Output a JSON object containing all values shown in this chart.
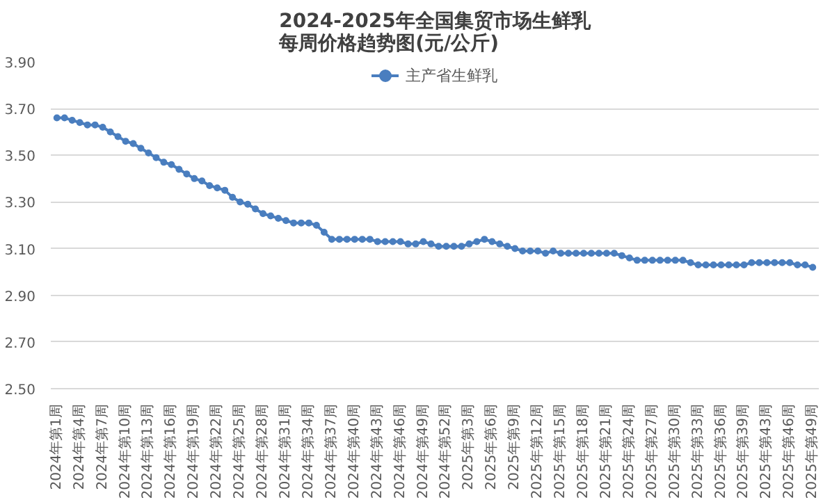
{
  "chart_data": {
    "type": "line",
    "title": "2024-2025年全国集贸市场生鲜乳每周价格趋势图(元/公斤)",
    "categories": [
      "2024年第1周",
      null,
      null,
      "2024年第4周",
      null,
      null,
      "2024年第7周",
      null,
      null,
      "2024年第10周",
      null,
      null,
      "2024年第13周",
      null,
      null,
      "2024年第16周",
      null,
      null,
      "2024年第19周",
      null,
      null,
      "2024年第22周",
      null,
      null,
      "2024年第25周",
      null,
      null,
      "2024年第28周",
      null,
      null,
      "2024年第31周",
      null,
      null,
      "2024年第34周",
      null,
      null,
      "2024年第37周",
      null,
      null,
      "2024年第40周",
      null,
      null,
      "2024年第43周",
      null,
      null,
      "2024年第46周",
      null,
      null,
      "2024年第49周",
      null,
      null,
      "2024年第52周",
      null,
      null,
      "2025年第3周",
      null,
      null,
      "2025年第6周",
      null,
      null,
      "2025年第9周",
      null,
      null,
      "2025年第12周",
      null,
      null,
      "2025年第15周",
      null,
      null,
      "2025年第18周",
      null,
      null,
      "2025年第21周",
      null,
      null,
      "2025年第24周",
      null,
      null,
      "2025年第27周",
      null,
      null,
      "2025年第30周",
      null,
      null,
      "2025年第33周",
      null,
      null,
      "2025年第36周",
      null,
      null,
      "2025年第39周",
      null,
      null,
      "2025年第43周",
      null,
      null,
      "2025年第46周",
      null,
      null,
      "2025年第49周"
    ],
    "series": [
      {
        "name": "主产省生鲜乳",
        "color": "#4a7ebf",
        "values": [
          3.66,
          3.66,
          3.65,
          3.64,
          3.63,
          3.63,
          3.62,
          3.6,
          3.58,
          3.56,
          3.55,
          3.53,
          3.51,
          3.49,
          3.47,
          3.46,
          3.44,
          3.42,
          3.4,
          3.39,
          3.37,
          3.36,
          3.35,
          3.32,
          3.3,
          3.29,
          3.27,
          3.25,
          3.24,
          3.23,
          3.22,
          3.21,
          3.21,
          3.21,
          3.2,
          3.17,
          3.14,
          3.14,
          3.14,
          3.14,
          3.14,
          3.14,
          3.13,
          3.13,
          3.13,
          3.13,
          3.12,
          3.12,
          3.13,
          3.12,
          3.11,
          3.11,
          3.11,
          3.11,
          3.12,
          3.13,
          3.14,
          3.13,
          3.12,
          3.11,
          3.1,
          3.09,
          3.09,
          3.09,
          3.08,
          3.09,
          3.08,
          3.08,
          3.08,
          3.08,
          3.08,
          3.08,
          3.08,
          3.08,
          3.07,
          3.06,
          3.05,
          3.05,
          3.05,
          3.05,
          3.05,
          3.05,
          3.05,
          3.04,
          3.03,
          3.03,
          3.03,
          3.03,
          3.03,
          3.03,
          3.03,
          3.04,
          3.04,
          3.04,
          3.04,
          3.04,
          3.04,
          3.03,
          3.03,
          3.02
        ]
      }
    ],
    "ylim": [
      2.5,
      3.9
    ],
    "yticks": [
      {
        "value": 2.5,
        "label": "2.50"
      },
      {
        "value": 2.7,
        "label": "2.70"
      },
      {
        "value": 2.9,
        "label": "2.90"
      },
      {
        "value": 3.1,
        "label": "3.10"
      },
      {
        "value": 3.3,
        "label": "3.30"
      },
      {
        "value": 3.5,
        "label": "3.50"
      },
      {
        "value": 3.7,
        "label": "3.70"
      },
      {
        "value": 3.9,
        "label": "3.90"
      }
    ],
    "grid": "y",
    "legend": "top",
    "marker": "circle",
    "line_style": "solid"
  }
}
